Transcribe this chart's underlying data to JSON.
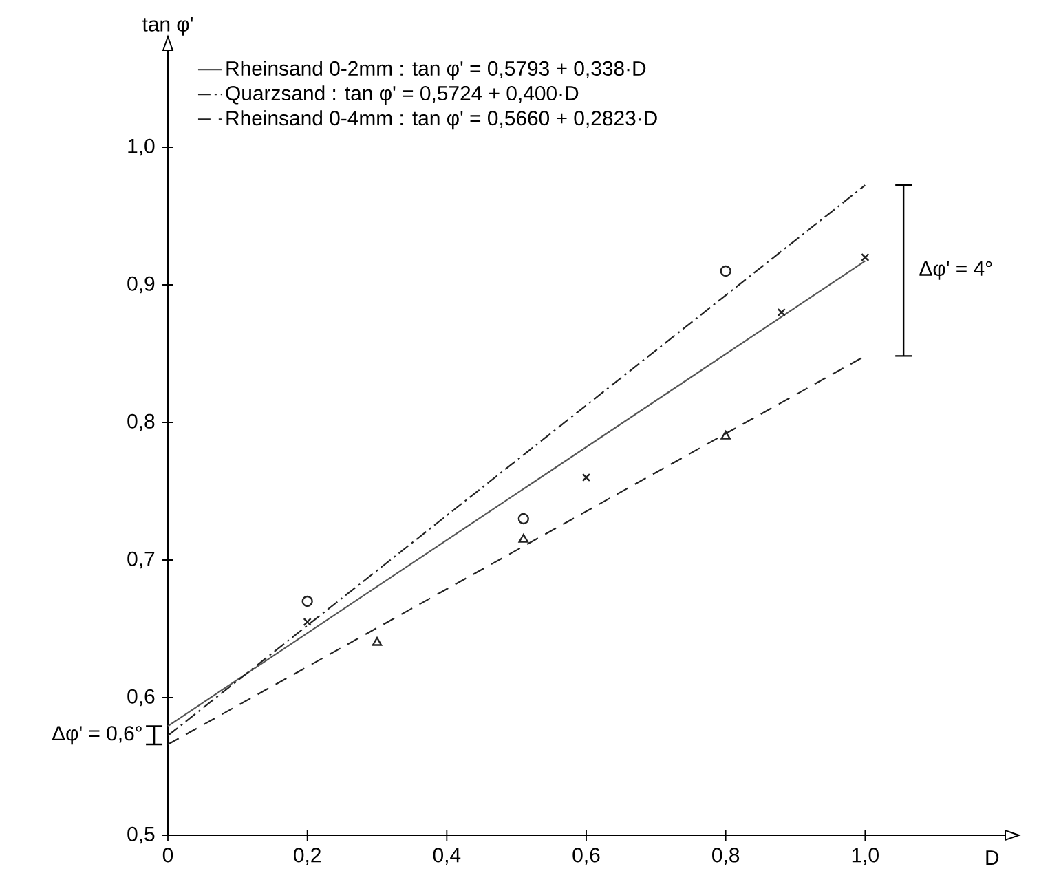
{
  "chart_data": {
    "type": "line",
    "xlabel": "D",
    "ylabel": "tan φ'",
    "xlim": [
      0,
      1.2
    ],
    "ylim": [
      0.5,
      1.07
    ],
    "xticks": [
      0,
      {
        "value": 0.2,
        "label": "0,2"
      },
      {
        "value": 0.4,
        "label": "0,4"
      },
      {
        "value": 0.6,
        "label": "0,6"
      },
      {
        "value": 0.8,
        "label": "0,8"
      },
      {
        "value": 1.0,
        "label": "1,0"
      }
    ],
    "yticks": [
      {
        "value": 0.5,
        "label": "0,5"
      },
      {
        "value": 0.6,
        "label": "0,6"
      },
      {
        "value": 0.7,
        "label": "0,7"
      },
      {
        "value": 0.8,
        "label": "0,8"
      },
      {
        "value": 0.9,
        "label": "0,9"
      },
      {
        "value": 1.0,
        "label": "1,0"
      }
    ],
    "legend": "top left",
    "series": [
      {
        "name": "Rheinsand 0-2mm : tan φ' = 0,5793 + 0,338·D",
        "color": "#555555",
        "line_style": "solid",
        "x": [
          0,
          1.0
        ],
        "values": [
          0.5793,
          0.9173
        ]
      },
      {
        "name": "Quarzsand : tan φ' = 0,5724 + 0,400·D",
        "color": "#222222",
        "line_style": "dashdot",
        "x": [
          0,
          1.0
        ],
        "values": [
          0.5724,
          0.9724
        ]
      },
      {
        "name": "Rheinsand 0-4mm : tan φ' = 0,5660 + 0,2823·D",
        "color": "#222222",
        "line_style": "dashed",
        "x": [
          0,
          1.0
        ],
        "values": [
          0.566,
          0.8483
        ]
      },
      {
        "type": "scatter",
        "color": "#222222",
        "marker": "circle",
        "x": [
          0.2,
          0.51,
          0.8
        ],
        "values": [
          0.67,
          0.73,
          0.91
        ]
      },
      {
        "type": "scatter",
        "color": "#222222",
        "marker": "cross",
        "x": [
          0.2,
          0.6,
          0.88,
          1.0
        ],
        "values": [
          0.655,
          0.76,
          0.88,
          0.92
        ]
      },
      {
        "type": "scatter",
        "color": "#222222",
        "marker": "triangle",
        "x": [
          0.3,
          0.51,
          0.8
        ],
        "values": [
          0.64,
          0.715,
          0.79
        ]
      }
    ],
    "annotations": [
      "Δφ' = 4°",
      "Δφ' = 0,6°"
    ]
  }
}
